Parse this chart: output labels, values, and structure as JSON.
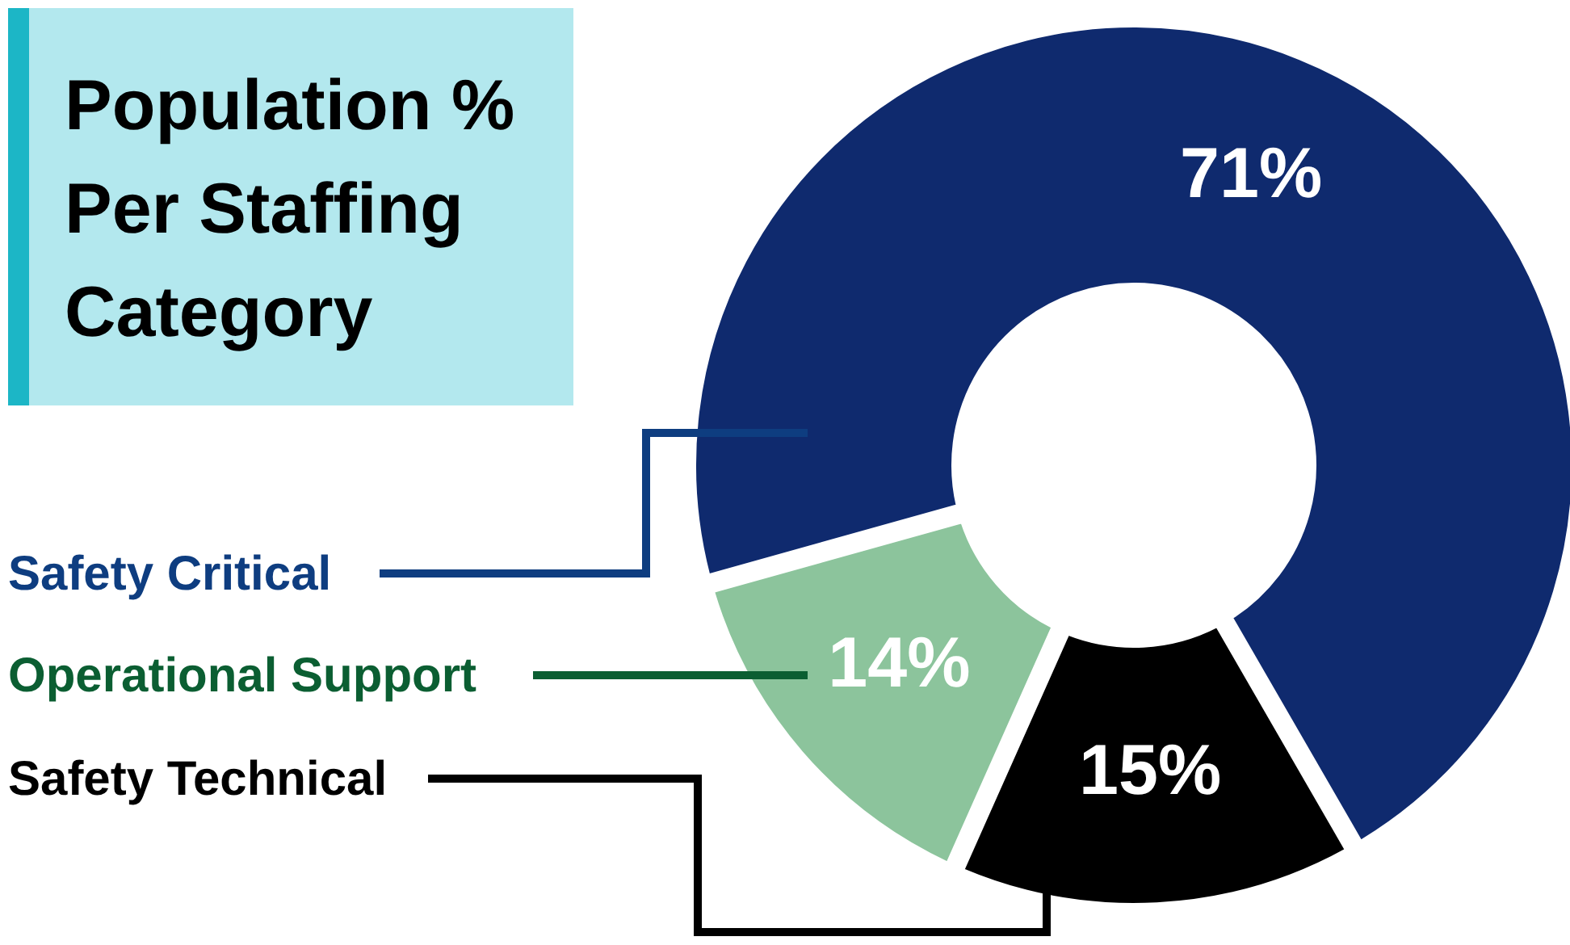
{
  "chart_data": {
    "type": "donut",
    "title": "Population % Per Staffing Category",
    "categories": [
      "Safety Critical",
      "Operational Support",
      "Safety Technical"
    ],
    "values": [
      71,
      14,
      15
    ],
    "colors": [
      "#0f2a6e",
      "#8cc49c",
      "#000000"
    ],
    "value_labels": [
      "71%",
      "14%",
      "15%"
    ]
  }
}
